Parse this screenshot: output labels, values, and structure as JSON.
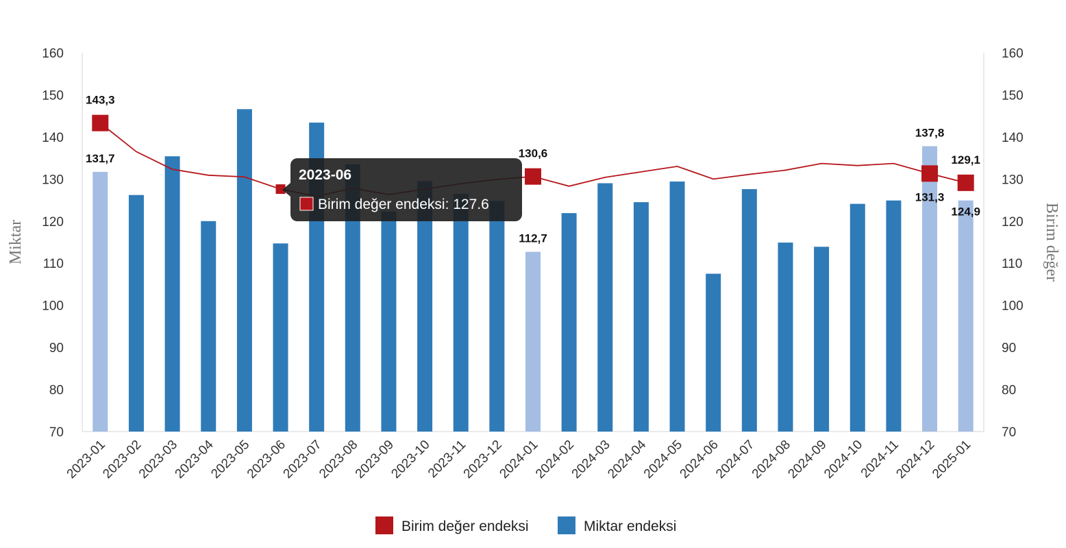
{
  "chart_data": {
    "type": "bar",
    "categories": [
      "2023-01",
      "2023-02",
      "2023-03",
      "2023-04",
      "2023-05",
      "2023-06",
      "2023-07",
      "2023-08",
      "2023-09",
      "2023-10",
      "2023-11",
      "2023-12",
      "2024-01",
      "2024-02",
      "2024-03",
      "2024-04",
      "2024-05",
      "2024-06",
      "2024-07",
      "2024-08",
      "2024-09",
      "2024-10",
      "2024-11",
      "2024-12",
      "2025-01"
    ],
    "y_left_label": "Miktar",
    "y_right_label": "Birim değer",
    "ylim": [
      70,
      160
    ],
    "yticks": [
      70,
      80,
      90,
      100,
      110,
      120,
      130,
      140,
      150,
      160
    ],
    "yticks_right": [
      70,
      80,
      90,
      100,
      110,
      120,
      130,
      140,
      150,
      160
    ],
    "grid": false,
    "legend_position": "bottom-center",
    "series": [
      {
        "name": "Birim değer endeksi",
        "type": "line",
        "color": "#b5161b",
        "values": [
          143.3,
          136.5,
          132.3,
          130.9,
          130.5,
          127.6,
          125.9,
          127.8,
          126.3,
          127.6,
          128.9,
          129.9,
          130.6,
          128.3,
          130.4,
          131.7,
          133.0,
          130.0,
          131.1,
          132.1,
          133.7,
          133.2,
          133.7,
          131.3,
          129.1
        ],
        "marked_points": [
          0,
          12,
          23,
          24
        ],
        "data_labels": [
          {
            "index": 0,
            "text": "143,3"
          },
          {
            "index": 12,
            "text": "130,6"
          },
          {
            "index": 23,
            "text": "131,3"
          },
          {
            "index": 24,
            "text": "129,1"
          }
        ]
      },
      {
        "name": "Miktar endeksi",
        "type": "bar",
        "color": "#2f7bb8",
        "highlight_color": "#a4bde3",
        "values": [
          131.7,
          126.2,
          135.4,
          120.0,
          146.6,
          114.7,
          143.4,
          133.5,
          122.3,
          129.5,
          126.5,
          124.8,
          112.7,
          121.9,
          129.0,
          124.5,
          129.4,
          107.5,
          127.6,
          114.9,
          113.9,
          124.1,
          124.9,
          137.8,
          124.9
        ],
        "highlighted": [
          0,
          12,
          23,
          24
        ],
        "data_labels": [
          {
            "index": 0,
            "text": "131,7"
          },
          {
            "index": 12,
            "text": "112,7"
          },
          {
            "index": 23,
            "text": "137,8"
          },
          {
            "index": 24,
            "text": "124,9"
          }
        ]
      }
    ],
    "tooltip": {
      "title": "2023-06",
      "series": "Birim değer endeksi",
      "label": "Birim değer endeksi: 127.6",
      "index": 5
    }
  }
}
